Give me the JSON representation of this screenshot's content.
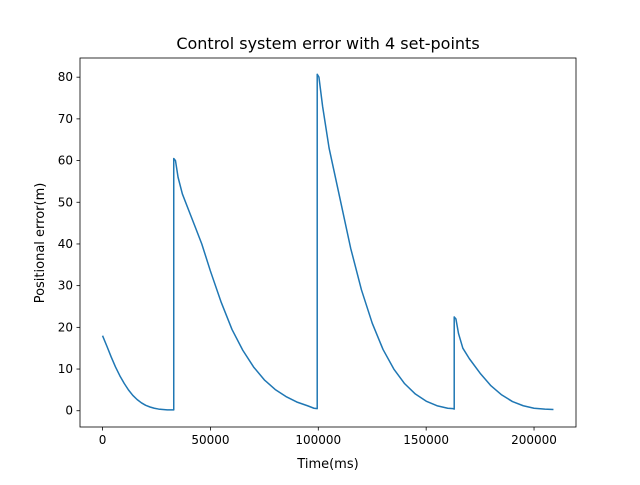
{
  "chart_data": {
    "type": "line",
    "title": "Control system error with 4 set-points",
    "xlabel": "Time(ms)",
    "ylabel": "Positional error(m)",
    "xlim": [
      -10450,
      219450
    ],
    "ylim": [
      -3.9,
      84.6
    ],
    "xticks": [
      0,
      50000,
      100000,
      150000,
      200000
    ],
    "xtick_labels": [
      "0",
      "50000",
      "100000",
      "150000",
      "200000"
    ],
    "yticks": [
      0,
      10,
      20,
      30,
      40,
      50,
      60,
      70,
      80
    ],
    "ytick_labels": [
      "0",
      "10",
      "20",
      "30",
      "40",
      "50",
      "60",
      "70",
      "80"
    ],
    "grid": false,
    "legend": "none",
    "colors": {
      "line": "#1f77b4"
    },
    "series": [
      {
        "x": [
          0,
          2000,
          4000,
          6000,
          8000,
          10000,
          12000,
          14000,
          16000,
          18000,
          20000,
          22000,
          24000,
          26000,
          28000,
          30000,
          32000,
          33000,
          33000,
          33800,
          35000,
          37000,
          40000,
          43000,
          46000,
          50000,
          55000,
          60000,
          65000,
          70000,
          75000,
          80000,
          85000,
          90000,
          95000,
          98000,
          99500,
          99500,
          100300,
          102000,
          105000,
          110000,
          115000,
          120000,
          125000,
          130000,
          135000,
          140000,
          145000,
          150000,
          155000,
          160000,
          162500,
          163000,
          163000,
          163800,
          165000,
          167000,
          170000,
          175000,
          180000,
          185000,
          190000,
          195000,
          200000,
          205000,
          209000
        ],
        "y": [
          18.0,
          15.5,
          12.9,
          10.5,
          8.4,
          6.6,
          5.0,
          3.7,
          2.7,
          1.9,
          1.3,
          0.9,
          0.6,
          0.4,
          0.3,
          0.2,
          0.2,
          0.2,
          60.5,
          60.0,
          56.0,
          52.0,
          48.0,
          44.0,
          40.0,
          33.5,
          26.0,
          19.5,
          14.5,
          10.5,
          7.4,
          5.1,
          3.4,
          2.1,
          1.2,
          0.6,
          0.5,
          80.7,
          80.0,
          73.0,
          63.0,
          51.0,
          39.0,
          29.0,
          21.0,
          14.7,
          10.0,
          6.5,
          4.0,
          2.3,
          1.2,
          0.6,
          0.5,
          0.4,
          22.5,
          22.0,
          18.5,
          15.0,
          12.5,
          9.0,
          6.0,
          3.8,
          2.2,
          1.2,
          0.6,
          0.4,
          0.3
        ]
      }
    ]
  }
}
